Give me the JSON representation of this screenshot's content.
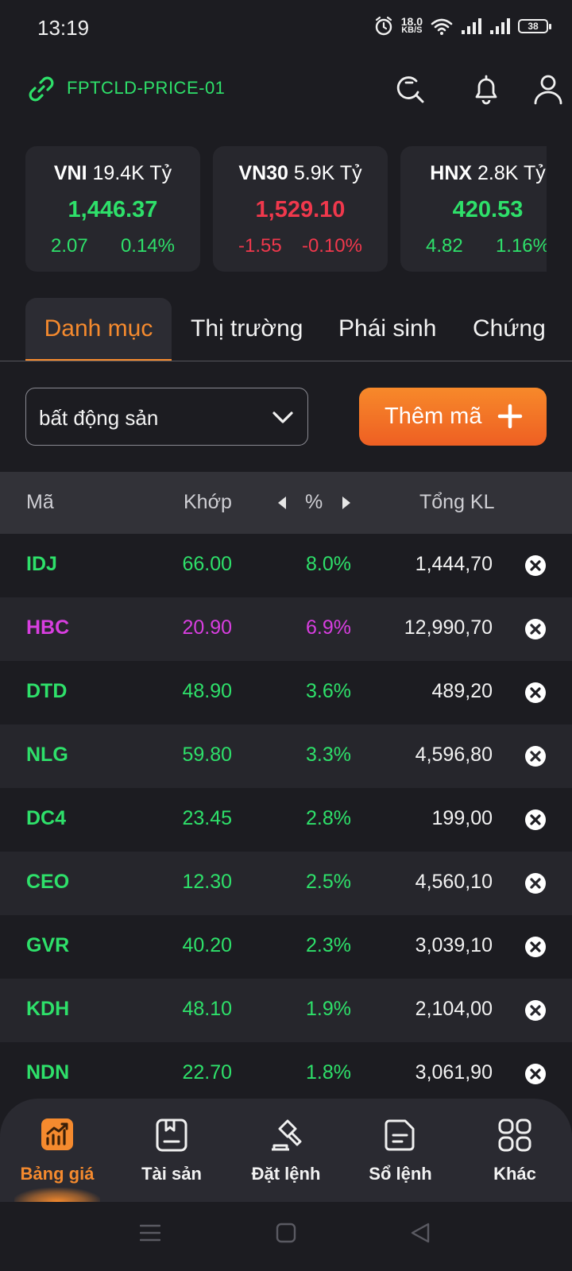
{
  "status_bar": {
    "time": "13:19",
    "net_speed_value": "18.0",
    "net_speed_unit": "KB/S",
    "battery": "38",
    "icons": [
      "alarm-icon",
      "wifi-icon",
      "signal-icon",
      "signal-icon",
      "battery-icon"
    ]
  },
  "header": {
    "account": "FPTCLD-PRICE-01",
    "icons": [
      "link-icon",
      "search-refresh-icon",
      "bell-icon",
      "user-icon"
    ]
  },
  "indices": [
    {
      "name": "VNI",
      "turnover": "19.4K Tỷ",
      "value": "1,446.37",
      "change": "2.07",
      "percent": "0.14%",
      "trend": "up"
    },
    {
      "name": "VN30",
      "turnover": "5.9K Tỷ",
      "value": "1,529.10",
      "change": "-1.55",
      "percent": "-0.10%",
      "trend": "down"
    },
    {
      "name": "HNX",
      "turnover": "2.8K Tỷ",
      "value": "420.53",
      "change": "4.82",
      "percent": "1.16%",
      "trend": "up"
    }
  ],
  "tabs": [
    {
      "label": "Danh mục",
      "active": true
    },
    {
      "label": "Thị trường",
      "active": false
    },
    {
      "label": "Phái sinh",
      "active": false
    },
    {
      "label": "Chứng",
      "active": false
    }
  ],
  "watchlist_select": {
    "value": "bất động sản"
  },
  "add_button": {
    "label": "Thêm mã"
  },
  "table": {
    "headers": {
      "symbol": "Mã",
      "price": "Khớp",
      "percent": "%",
      "volume": "Tổng KL"
    },
    "rows": [
      {
        "symbol": "IDJ",
        "price": "66.00",
        "percent": "8.0%",
        "volume": "1,444,70",
        "state": "up"
      },
      {
        "symbol": "HBC",
        "price": "20.90",
        "percent": "6.9%",
        "volume": "12,990,70",
        "state": "ceil"
      },
      {
        "symbol": "DTD",
        "price": "48.90",
        "percent": "3.6%",
        "volume": "489,20",
        "state": "up"
      },
      {
        "symbol": "NLG",
        "price": "59.80",
        "percent": "3.3%",
        "volume": "4,596,80",
        "state": "up"
      },
      {
        "symbol": "DC4",
        "price": "23.45",
        "percent": "2.8%",
        "volume": "199,00",
        "state": "up"
      },
      {
        "symbol": "CEO",
        "price": "12.30",
        "percent": "2.5%",
        "volume": "4,560,10",
        "state": "up"
      },
      {
        "symbol": "GVR",
        "price": "40.20",
        "percent": "2.3%",
        "volume": "3,039,10",
        "state": "up"
      },
      {
        "symbol": "KDH",
        "price": "48.10",
        "percent": "1.9%",
        "volume": "2,104,00",
        "state": "up"
      },
      {
        "symbol": "NDN",
        "price": "22.70",
        "percent": "1.8%",
        "volume": "3,061,90",
        "state": "up"
      }
    ]
  },
  "bottom_nav": [
    {
      "label": "Bảng giá",
      "icon": "chart-icon",
      "active": true
    },
    {
      "label": "Tài sản",
      "icon": "wallet-icon",
      "active": false
    },
    {
      "label": "Đặt lệnh",
      "icon": "gavel-icon",
      "active": false
    },
    {
      "label": "Sổ lệnh",
      "icon": "order-book-icon",
      "active": false
    },
    {
      "label": "Khác",
      "icon": "grid-icon",
      "active": false
    }
  ],
  "colors": {
    "up": "#2ee06a",
    "down": "#f0384c",
    "ceiling": "#d83ee0",
    "accent": "#f58a2e",
    "background": "#1c1c21"
  }
}
